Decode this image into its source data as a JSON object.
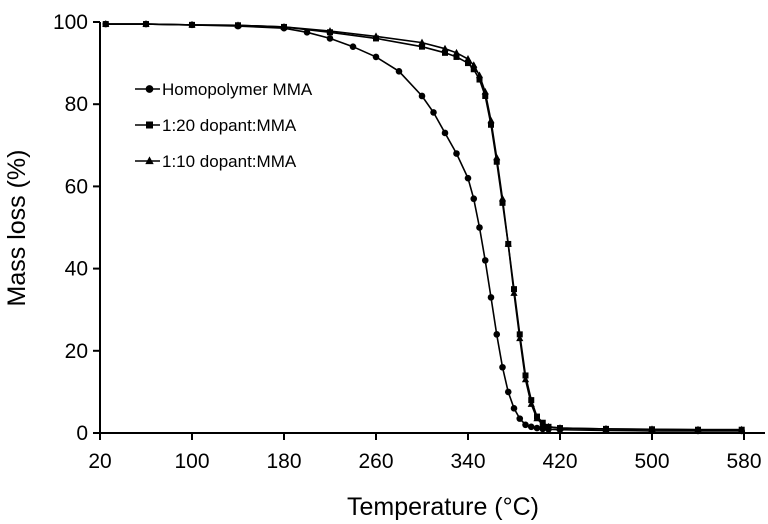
{
  "chart_data": {
    "type": "line",
    "title": "",
    "xlabel": "Temperature (°C)",
    "ylabel": "Mass loss (%)",
    "xlim": [
      20,
      600
    ],
    "ylim": [
      0,
      100
    ],
    "xticks": [
      "20",
      "100",
      "180",
      "260",
      "340",
      "420",
      "500",
      "580"
    ],
    "yticks": [
      "0",
      "20",
      "40",
      "60",
      "80",
      "100"
    ],
    "grid": false,
    "legend_position": "upper-left inside",
    "series": [
      {
        "name": "Homopolymer MMA",
        "marker": "circle",
        "x": [
          25,
          60,
          100,
          140,
          180,
          200,
          220,
          240,
          260,
          280,
          300,
          310,
          320,
          330,
          340,
          345,
          350,
          355,
          360,
          365,
          370,
          375,
          380,
          385,
          390,
          395,
          400,
          405,
          410,
          420,
          460,
          500,
          540,
          578
        ],
        "y": [
          99.5,
          99.5,
          99.3,
          99.0,
          98.5,
          97.5,
          96.0,
          94.0,
          91.5,
          88.0,
          82.0,
          78.0,
          73.0,
          68.0,
          62.0,
          57.0,
          50.0,
          42.0,
          33.0,
          24.0,
          16.0,
          10.0,
          6.0,
          3.5,
          2.0,
          1.5,
          1.2,
          1.0,
          0.9,
          0.8,
          0.6,
          0.5,
          0.5,
          0.5
        ]
      },
      {
        "name": "1:20 dopant:MMA",
        "marker": "square",
        "x": [
          25,
          60,
          100,
          140,
          180,
          220,
          260,
          300,
          320,
          330,
          340,
          345,
          350,
          355,
          360,
          365,
          370,
          375,
          380,
          385,
          390,
          395,
          400,
          405,
          410,
          420,
          460,
          500,
          540,
          578
        ],
        "y": [
          99.5,
          99.5,
          99.3,
          99.2,
          98.8,
          97.5,
          96.0,
          94.0,
          92.5,
          91.5,
          90.0,
          88.5,
          86.0,
          82.0,
          75.0,
          66.0,
          56.0,
          46.0,
          35.0,
          24.0,
          14.0,
          8.0,
          4.0,
          2.5,
          1.5,
          1.2,
          1.0,
          0.9,
          0.8,
          0.8
        ]
      },
      {
        "name": "1:10 dopant:MMA",
        "marker": "triangle",
        "x": [
          25,
          60,
          100,
          140,
          180,
          220,
          260,
          300,
          320,
          330,
          340,
          345,
          350,
          355,
          360,
          365,
          370,
          375,
          380,
          385,
          390,
          395,
          400,
          405,
          410,
          420,
          460,
          500,
          540,
          578
        ],
        "y": [
          99.5,
          99.5,
          99.3,
          99.2,
          98.8,
          97.8,
          96.5,
          95.0,
          93.5,
          92.5,
          91.0,
          89.5,
          87.0,
          83.0,
          76.0,
          67.0,
          57.0,
          46.0,
          34.0,
          23.0,
          13.0,
          7.0,
          3.5,
          2.0,
          1.5,
          1.2,
          1.0,
          0.9,
          0.8,
          0.8
        ]
      }
    ]
  }
}
